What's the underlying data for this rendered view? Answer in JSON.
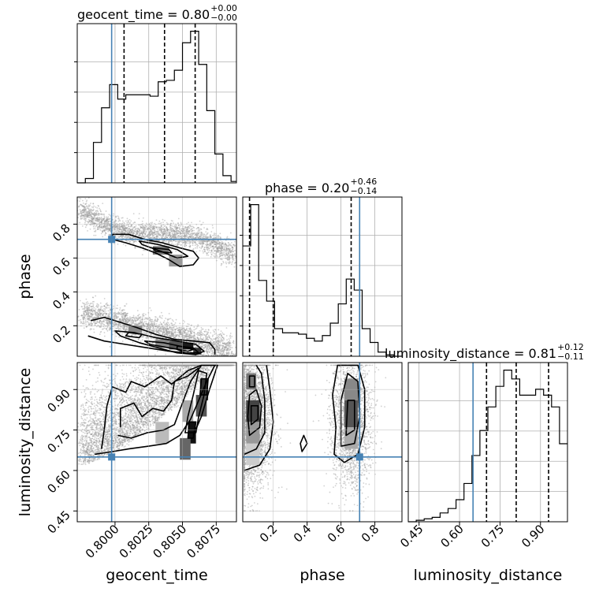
{
  "chart_data": {
    "type": "corner",
    "parameters": [
      "geocent_time",
      "phase",
      "luminosity_distance"
    ],
    "truths": [
      0.79975,
      0.71,
      0.65
    ],
    "truth_color": "#4682b4",
    "titles": [
      {
        "main": "geocent_time = 0.80",
        "sup": "+0.00",
        "sub": "−0.00"
      },
      {
        "main": "phase = 0.20",
        "sup": "+0.46",
        "sub": "−0.14"
      },
      {
        "main": "luminosity_distance = 0.81",
        "sup": "+0.12",
        "sub": "−0.11"
      }
    ],
    "axis_labels": {
      "x": [
        "geocent_time",
        "phase",
        "luminosity_distance"
      ],
      "y": [
        "phase",
        "luminosity_distance"
      ]
    },
    "ranges": {
      "geocent_time": [
        0.7972,
        0.809
      ],
      "phase": [
        0.02,
        0.96
      ],
      "luminosity_distance": [
        0.41,
        1.0
      ]
    },
    "ticks": {
      "geocent_time": [
        0.8,
        0.8025,
        0.805,
        0.8075
      ],
      "phase": [
        0.2,
        0.4,
        0.6,
        0.8
      ],
      "luminosity_distance": [
        0.45,
        0.6,
        0.75,
        0.9
      ]
    },
    "tick_labels": {
      "geocent_time": [
        "0.8000",
        "0.8025",
        "0.8050",
        "0.8075"
      ],
      "phase": [
        "0.2",
        "0.4",
        "0.6",
        "0.8"
      ],
      "luminosity_distance": [
        "0.45",
        "0.60",
        "0.75",
        "0.90"
      ]
    },
    "quantiles": {
      "geocent_time": [
        0.80067,
        0.80367,
        0.80594
      ],
      "phase": [
        0.06,
        0.2,
        0.66
      ],
      "luminosity_distance": [
        0.7,
        0.81,
        0.93
      ]
    },
    "hist_geocent_time": {
      "edges": [
        0.7972,
        0.7978,
        0.7984,
        0.799,
        0.7996,
        0.8002,
        0.8008,
        0.8014,
        0.802,
        0.8026,
        0.8032,
        0.8038,
        0.8044,
        0.805,
        0.8056,
        0.8062,
        0.8068,
        0.8074,
        0.808,
        0.8086,
        0.809
      ],
      "counts": [
        0,
        3,
        28,
        52,
        68,
        58,
        61,
        61,
        61,
        60,
        70,
        71,
        78,
        97,
        105,
        82,
        50,
        20,
        5,
        1
      ]
    },
    "hist_phase": {
      "edges": [
        0.02,
        0.067,
        0.114,
        0.161,
        0.208,
        0.255,
        0.302,
        0.349,
        0.396,
        0.443,
        0.49,
        0.537,
        0.584,
        0.631,
        0.678,
        0.725,
        0.772,
        0.819,
        0.866,
        0.913,
        0.96
      ],
      "counts": [
        80,
        110,
        55,
        40,
        20,
        17,
        17,
        16,
        13,
        11,
        15,
        24,
        38,
        56,
        48,
        20,
        10,
        3,
        1,
        0
      ]
    },
    "hist_luminosity_distance": {
      "edges": [
        0.41,
        0.4395,
        0.469,
        0.4985,
        0.528,
        0.5575,
        0.587,
        0.6165,
        0.646,
        0.6755,
        0.705,
        0.7345,
        0.764,
        0.7935,
        0.823,
        0.8525,
        0.882,
        0.9115,
        0.941,
        0.9705,
        1.0
      ],
      "counts": [
        0,
        1,
        2,
        3,
        6,
        9,
        15,
        26,
        45,
        62,
        78,
        92,
        103,
        97,
        86,
        86,
        90,
        86,
        78,
        53
      ]
    }
  }
}
